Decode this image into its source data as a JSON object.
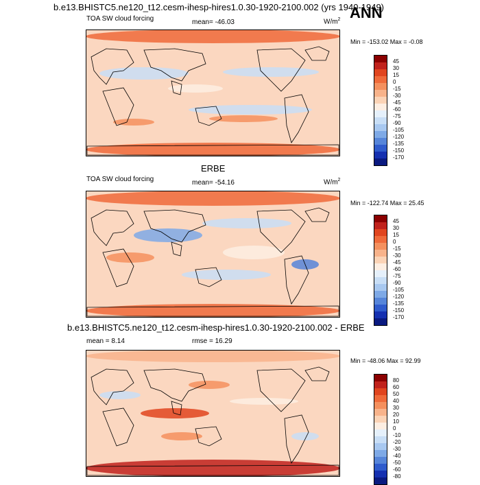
{
  "title": "b.e13.BHISTC5.ne120_t12.cesm-ihesp-hires1.0.30-1920-2100.002 (yrs 1940-1949)",
  "season": "ANN",
  "panels": [
    {
      "variable": "TOA SW cloud forcing",
      "stat": "mean= -46.03",
      "units": "W/m",
      "units_exp": "2",
      "minmax": "Min = -153.02 Max =  -0.08",
      "colorbar": {
        "labels": [
          "45",
          "30",
          "15",
          "0",
          "-15",
          "-30",
          "-45",
          "-60",
          "-75",
          "-90",
          "-105",
          "-120",
          "-135",
          "-150",
          "-170"
        ],
        "colors": [
          "#8b0000",
          "#c0221c",
          "#e0451f",
          "#ef6a3a",
          "#f4905e",
          "#f8b38b",
          "#fbd3b6",
          "#fdeee2",
          "#e5f0fb",
          "#c8def6",
          "#a8c8f0",
          "#7ea9e6",
          "#5685d9",
          "#2f5bcc",
          "#1530b0",
          "#0a1a80"
        ]
      }
    },
    {
      "heading": "ERBE",
      "variable": "TOA SW cloud forcing",
      "stat": "mean= -54.16",
      "units": "W/m",
      "units_exp": "2",
      "minmax": "Min = -122.74 Max =  25.45",
      "colorbar": {
        "labels": [
          "45",
          "30",
          "15",
          "0",
          "-15",
          "-30",
          "-45",
          "-60",
          "-75",
          "-90",
          "-105",
          "-120",
          "-135",
          "-150",
          "-170"
        ],
        "colors": [
          "#8b0000",
          "#c0221c",
          "#e0451f",
          "#ef6a3a",
          "#f4905e",
          "#f8b38b",
          "#fbd3b6",
          "#fdeee2",
          "#e5f0fb",
          "#c8def6",
          "#a8c8f0",
          "#7ea9e6",
          "#5685d9",
          "#2f5bcc",
          "#1530b0",
          "#0a1a80"
        ]
      }
    },
    {
      "heading": "b.e13.BHISTC5.ne120_t12.cesm-ihesp-hires1.0.30-1920-2100.002 - ERBE",
      "stat": "mean =   8.14",
      "stat2": "rmse =  16.29",
      "minmax": "Min = -48.06 Max =  92.99",
      "colorbar": {
        "labels": [
          "80",
          "60",
          "50",
          "40",
          "30",
          "20",
          "10",
          "0",
          "-10",
          "-20",
          "-30",
          "-40",
          "-50",
          "-60",
          "-80"
        ],
        "colors": [
          "#8b0000",
          "#c0221c",
          "#e0451f",
          "#ef6a3a",
          "#f4905e",
          "#f8b38b",
          "#fbd3b6",
          "#fdeee2",
          "#e5f0fb",
          "#c8def6",
          "#a8c8f0",
          "#7ea9e6",
          "#5685d9",
          "#2f5bcc",
          "#1530b0",
          "#0a1a80"
        ]
      }
    }
  ]
}
